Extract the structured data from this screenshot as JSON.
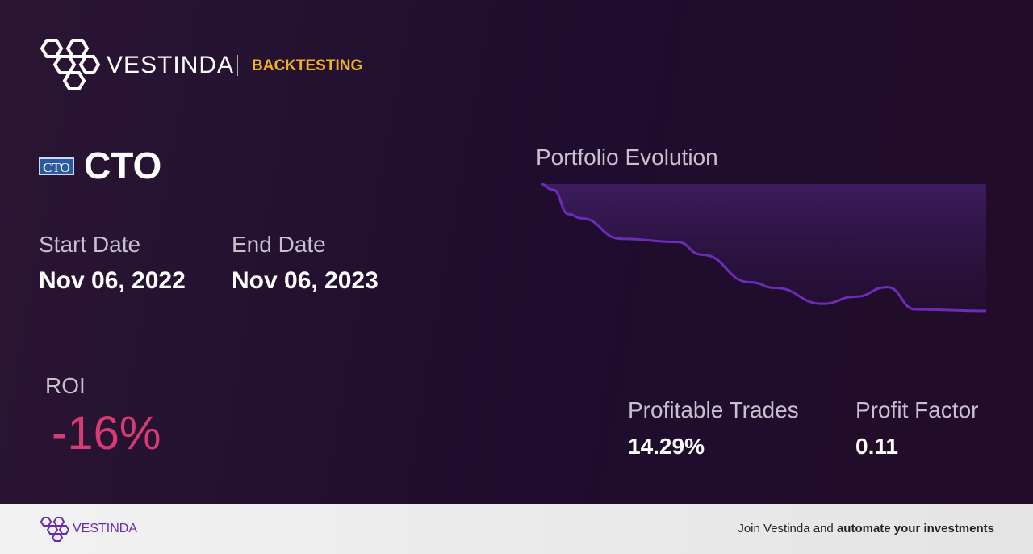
{
  "header": {
    "brand": "VESTINDA",
    "section": "BACKTESTING"
  },
  "ticker": {
    "logo": "CTO",
    "symbol": "CTO"
  },
  "start_date": {
    "label": "Start Date",
    "value": "Nov 06, 2022"
  },
  "end_date": {
    "label": "End Date",
    "value": "Nov 06, 2023"
  },
  "roi": {
    "label": "ROI",
    "value": "-16%"
  },
  "chart_data": {
    "type": "area",
    "title": "Portfolio Evolution",
    "x": [
      0,
      10,
      23,
      33,
      66,
      112,
      132,
      172,
      192,
      231,
      258,
      284,
      307,
      365
    ],
    "values": [
      0,
      -0.7,
      -3.8,
      -4.3,
      -6.9,
      -7.3,
      -8.9,
      -12.4,
      -13.1,
      -15.1,
      -14.2,
      -13.0,
      -15.8,
      -16
    ],
    "xlim": [
      0,
      365
    ],
    "ylim": [
      -16,
      0
    ],
    "color": "#6b2db8"
  },
  "profitable_trades": {
    "label": "Profitable Trades",
    "value": "14.29%"
  },
  "profit_factor": {
    "label": "Profit Factor",
    "value": "0.11"
  },
  "footer": {
    "brand": "VESTINDA",
    "cta_prefix": "Join Vestinda and",
    "cta_bold": "automate your investments"
  }
}
